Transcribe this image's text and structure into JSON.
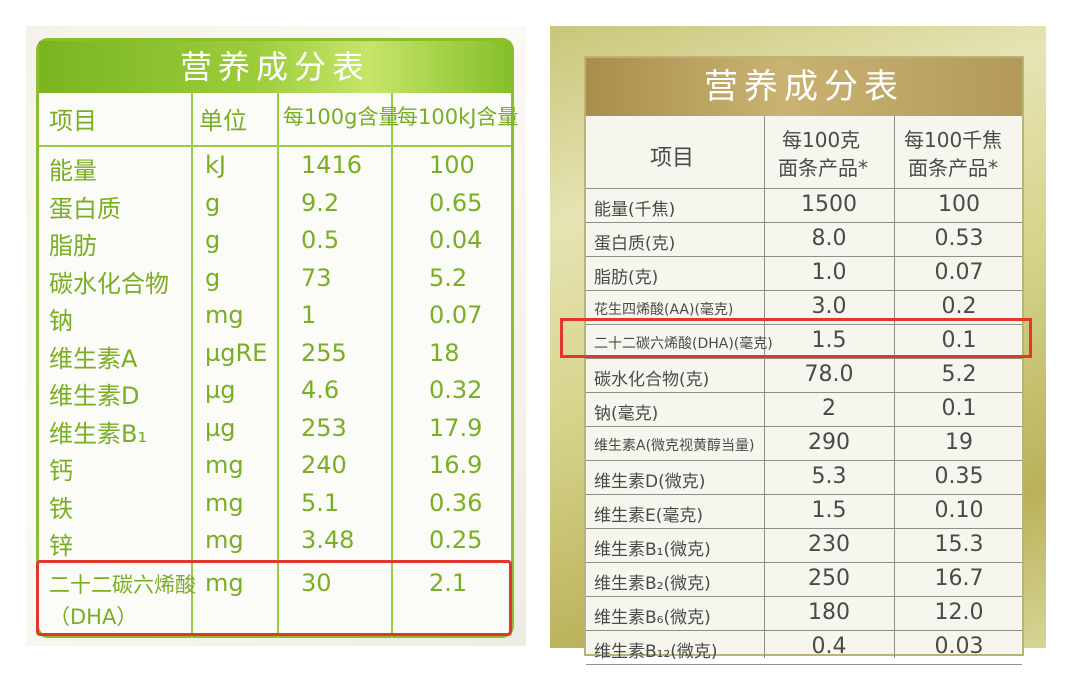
{
  "left": {
    "title": "营养成分表",
    "headers": [
      "项目",
      "单位",
      "每100g含量",
      "每100kJ含量"
    ],
    "rows": [
      {
        "name": "能量",
        "unit": "kJ",
        "per100g": "1416",
        "per100kj": "100"
      },
      {
        "name": "蛋白质",
        "unit": "g",
        "per100g": "9.2",
        "per100kj": "0.65"
      },
      {
        "name": "脂肪",
        "unit": "g",
        "per100g": "0.5",
        "per100kj": "0.04"
      },
      {
        "name": "碳水化合物",
        "unit": "g",
        "per100g": "73",
        "per100kj": "5.2"
      },
      {
        "name": "钠",
        "unit": "mg",
        "per100g": "1",
        "per100kj": "0.07"
      },
      {
        "name": "维生素A",
        "unit": "µgRE",
        "per100g": "255",
        "per100kj": "18"
      },
      {
        "name": "维生素D",
        "unit": "µg",
        "per100g": "4.6",
        "per100kj": "0.32"
      },
      {
        "name": "维生素B₁",
        "unit": "µg",
        "per100g": "253",
        "per100kj": "17.9"
      },
      {
        "name": "钙",
        "unit": "mg",
        "per100g": "240",
        "per100kj": "16.9"
      },
      {
        "name": "铁",
        "unit": "mg",
        "per100g": "5.1",
        "per100kj": "0.36"
      },
      {
        "name": "锌",
        "unit": "mg",
        "per100g": "3.48",
        "per100kj": "0.25"
      }
    ],
    "dha": {
      "name_line1": "二十二碳六烯酸",
      "name_line2": "（DHA）",
      "unit": "mg",
      "per100g": "30",
      "per100kj": "2.1"
    }
  },
  "right": {
    "title": "营养成分表",
    "headers": {
      "item": "项目",
      "col1_line1": "每100克",
      "col1_line2": "面条产品*",
      "col2_line1": "每100千焦",
      "col2_line2": "面条产品*"
    },
    "rows": [
      {
        "name": "能量(千焦)",
        "per100g": "1500",
        "per100kj": "100"
      },
      {
        "name": "蛋白质(克)",
        "per100g": "8.0",
        "per100kj": "0.53"
      },
      {
        "name": "脂肪(克)",
        "per100g": "1.0",
        "per100kj": "0.07"
      },
      {
        "name": "花生四烯酸(AA)(毫克)",
        "per100g": "3.0",
        "per100kj": "0.2"
      },
      {
        "name": "二十二碳六烯酸(DHA)(毫克)",
        "per100g": "1.5",
        "per100kj": "0.1"
      },
      {
        "name": "碳水化合物(克)",
        "per100g": "78.0",
        "per100kj": "5.2"
      },
      {
        "name": "钠(毫克)",
        "per100g": "2",
        "per100kj": "0.1"
      },
      {
        "name": "维生素A(微克视黄醇当量)",
        "per100g": "290",
        "per100kj": "19"
      },
      {
        "name": "维生素D(微克)",
        "per100g": "5.3",
        "per100kj": "0.35"
      },
      {
        "name": "维生素E(毫克)",
        "per100g": "1.5",
        "per100kj": "0.10"
      },
      {
        "name": "维生素B₁(微克)",
        "per100g": "230",
        "per100kj": "15.3"
      },
      {
        "name": "维生素B₂(微克)",
        "per100g": "250",
        "per100kj": "16.7"
      },
      {
        "name": "维生素B₆(微克)",
        "per100g": "180",
        "per100kj": "12.0"
      },
      {
        "name": "维生素B₁₂(微克)",
        "per100g": "0.4",
        "per100kj": "0.03"
      }
    ]
  },
  "colors": {
    "left_green": "#7aae25",
    "right_gold": "#b39a5a",
    "highlight_red": "#e0382c"
  }
}
